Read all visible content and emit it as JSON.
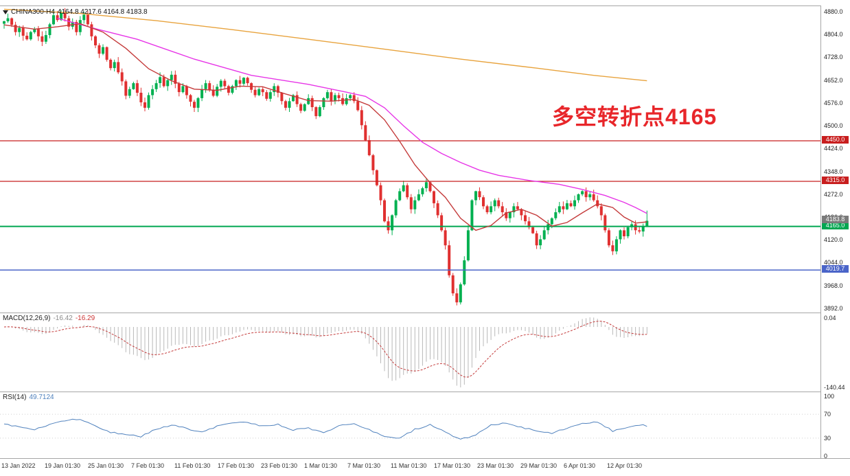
{
  "window": {
    "symbol": "CHINA300-H4",
    "ohlc_text": "4164.8 4217.6 4164.8 4183.8"
  },
  "annotation": {
    "text": "多空转折点4165",
    "color": "#e8262a"
  },
  "chart_data": {
    "type": "candlestick",
    "title": "CHINA300 H4 candlestick chart with MACD and RSI",
    "symbol": "CHINA300",
    "timeframe": "H4",
    "current_bar": {
      "open": 4164.8,
      "high": 4217.6,
      "low": 4164.8,
      "close": 4183.8
    },
    "price_axis": {
      "top_price": 4880,
      "tick_step": 76,
      "ticks": [
        "4880.0",
        "4804.0",
        "4728.0",
        "4652.0",
        "4576.0",
        "4500.0",
        "4424.0",
        "4348.0",
        "4272.0",
        "4196.0",
        "4120.0",
        "4044.0",
        "3968.0",
        "3892.0"
      ]
    },
    "time_axis": {
      "labels": [
        "13 Jan 2022",
        "19 Jan 01:30",
        "25 Jan 01:30",
        "7 Feb 01:30",
        "11 Feb 01:30",
        "17 Feb 01:30",
        "23 Feb 01:30",
        "1 Mar 01:30",
        "7 Mar 01:30",
        "11 Mar 01:30",
        "17 Mar 01:30",
        "23 Mar 01:30",
        "29 Mar 01:30",
        "6 Apr 01:30",
        "12 Apr 01:30"
      ]
    },
    "levels": [
      {
        "price": 4450.0,
        "label": "4450.0",
        "color": "#c81e1e",
        "width": 1.2
      },
      {
        "price": 4315.0,
        "label": "4315.0",
        "color": "#c81e1e",
        "width": 1.2
      },
      {
        "price": 4165.0,
        "label": "4165.0",
        "color": "#00a651",
        "width": 2
      },
      {
        "price": 4019.7,
        "label": "4019.7",
        "color": "#4a64c8",
        "width": 1.5
      }
    ],
    "current_price_tag": {
      "price": 4183.8,
      "label": "4183.8",
      "color": "#7a7a7a"
    },
    "candles": {
      "up_color": "#00b050",
      "down_color": "#e03030",
      "first_open": 4840,
      "closes": [
        4848,
        4858,
        4836,
        4812,
        4826,
        4800,
        4788,
        4812,
        4822,
        4798,
        4780,
        4802,
        4838,
        4868,
        4852,
        4876,
        4858,
        4830,
        4846,
        4812,
        4852,
        4870,
        4838,
        4798,
        4768,
        4740,
        4762,
        4720,
        4692,
        4712,
        4678,
        4648,
        4600,
        4622,
        4642,
        4610,
        4578,
        4560,
        4602,
        4622,
        4642,
        4662,
        4632,
        4652,
        4670,
        4640,
        4612,
        4632,
        4602,
        4580,
        4560,
        4592,
        4622,
        4642,
        4620,
        4600,
        4630,
        4650,
        4632,
        4610,
        4632,
        4652,
        4640,
        4660,
        4642,
        4620,
        4602,
        4622,
        4612,
        4590,
        4612,
        4632,
        4610,
        4582,
        4560,
        4582,
        4602,
        4572,
        4550,
        4572,
        4592,
        4562,
        4532,
        4562,
        4592,
        4612,
        4582,
        4602,
        4592,
        4572,
        4592,
        4602,
        4582,
        4552,
        4502,
        4452,
        4402,
        4352,
        4302,
        4252,
        4182,
        4152,
        4202,
        4252,
        4282,
        4302,
        4262,
        4222,
        4252,
        4272,
        4292,
        4312,
        4282,
        4242,
        4202,
        4152,
        4102,
        4002,
        3942,
        3912,
        3972,
        4052,
        4152,
        4252,
        4282,
        4262,
        4232,
        4212,
        4232,
        4252,
        4232,
        4212,
        4192,
        4212,
        4232,
        4222,
        4202,
        4182,
        4162,
        4142,
        4102,
        4122,
        4152,
        4172,
        4192,
        4212,
        4232,
        4222,
        4242,
        4232,
        4252,
        4272,
        4282,
        4262,
        4272,
        4252,
        4232,
        4202,
        4152,
        4102,
        4082,
        4122,
        4152,
        4132,
        4162,
        4172,
        4152,
        4148,
        4164.8,
        4183.8
      ]
    },
    "moving_averages": [
      {
        "name": "slow-ma-orange",
        "color": "#e8a33d",
        "points": [
          [
            0,
            4888
          ],
          [
            20,
            4874
          ],
          [
            40,
            4850
          ],
          [
            60,
            4820
          ],
          [
            80,
            4788
          ],
          [
            100,
            4755
          ],
          [
            120,
            4722
          ],
          [
            140,
            4692
          ],
          [
            155,
            4668
          ],
          [
            169,
            4650
          ]
        ]
      },
      {
        "name": "medium-ma-magenta",
        "color": "#e735e7",
        "points": [
          [
            14,
            4858
          ],
          [
            25,
            4820
          ],
          [
            35,
            4788
          ],
          [
            50,
            4722
          ],
          [
            65,
            4668
          ],
          [
            80,
            4638
          ],
          [
            90,
            4612
          ],
          [
            95,
            4598
          ],
          [
            100,
            4560
          ],
          [
            105,
            4500
          ],
          [
            110,
            4445
          ],
          [
            115,
            4408
          ],
          [
            120,
            4378
          ],
          [
            125,
            4352
          ],
          [
            130,
            4335
          ],
          [
            138,
            4318
          ],
          [
            146,
            4305
          ],
          [
            152,
            4288
          ],
          [
            158,
            4268
          ],
          [
            163,
            4245
          ],
          [
            166,
            4228
          ],
          [
            169,
            4208
          ]
        ]
      },
      {
        "name": "fast-ma-red",
        "color": "#c43a3a",
        "points": [
          [
            0,
            4836
          ],
          [
            8,
            4822
          ],
          [
            14,
            4830
          ],
          [
            20,
            4840
          ],
          [
            26,
            4812
          ],
          [
            32,
            4758
          ],
          [
            38,
            4690
          ],
          [
            44,
            4650
          ],
          [
            50,
            4622
          ],
          [
            56,
            4618
          ],
          [
            62,
            4632
          ],
          [
            68,
            4630
          ],
          [
            74,
            4606
          ],
          [
            80,
            4584
          ],
          [
            86,
            4582
          ],
          [
            92,
            4588
          ],
          [
            96,
            4568
          ],
          [
            100,
            4520
          ],
          [
            104,
            4448
          ],
          [
            108,
            4370
          ],
          [
            112,
            4310
          ],
          [
            116,
            4262
          ],
          [
            120,
            4192
          ],
          [
            124,
            4152
          ],
          [
            128,
            4168
          ],
          [
            132,
            4210
          ],
          [
            136,
            4222
          ],
          [
            140,
            4202
          ],
          [
            144,
            4166
          ],
          [
            148,
            4178
          ],
          [
            152,
            4210
          ],
          [
            156,
            4240
          ],
          [
            160,
            4228
          ],
          [
            163,
            4196
          ],
          [
            166,
            4176
          ],
          [
            169,
            4180
          ]
        ]
      }
    ],
    "macd": {
      "label": "MACD(12,26,9)",
      "value_main": "-16.42",
      "value_signal": "-16.29",
      "fast": 12,
      "slow": 26,
      "signal": 9,
      "axis_top_label": "0.04",
      "axis_bottom_label": "-140.44",
      "hist_color": "#b8b8b8",
      "signal_color": "#c43a3a"
    },
    "rsi": {
      "label": "RSI(14)",
      "value_text": "49.7124",
      "color": "#4f81bd",
      "axis_labels": [
        100,
        70,
        30,
        0
      ],
      "level_lines": [
        70,
        30
      ],
      "points": [
        [
          0,
          55
        ],
        [
          4,
          48
        ],
        [
          8,
          44
        ],
        [
          12,
          52
        ],
        [
          16,
          60
        ],
        [
          20,
          62
        ],
        [
          24,
          50
        ],
        [
          28,
          40
        ],
        [
          32,
          36
        ],
        [
          36,
          33
        ],
        [
          40,
          45
        ],
        [
          44,
          52
        ],
        [
          48,
          46
        ],
        [
          52,
          40
        ],
        [
          56,
          50
        ],
        [
          60,
          55
        ],
        [
          64,
          57
        ],
        [
          68,
          50
        ],
        [
          72,
          53
        ],
        [
          76,
          44
        ],
        [
          80,
          47
        ],
        [
          84,
          38
        ],
        [
          88,
          52
        ],
        [
          92,
          55
        ],
        [
          96,
          44
        ],
        [
          100,
          32
        ],
        [
          104,
          30
        ],
        [
          108,
          45
        ],
        [
          112,
          52
        ],
        [
          116,
          40
        ],
        [
          120,
          28
        ],
        [
          124,
          35
        ],
        [
          128,
          52
        ],
        [
          132,
          55
        ],
        [
          136,
          48
        ],
        [
          140,
          42
        ],
        [
          144,
          38
        ],
        [
          148,
          47
        ],
        [
          152,
          55
        ],
        [
          156,
          58
        ],
        [
          160,
          42
        ],
        [
          164,
          48
        ],
        [
          168,
          52
        ],
        [
          169,
          49.7
        ]
      ]
    }
  }
}
